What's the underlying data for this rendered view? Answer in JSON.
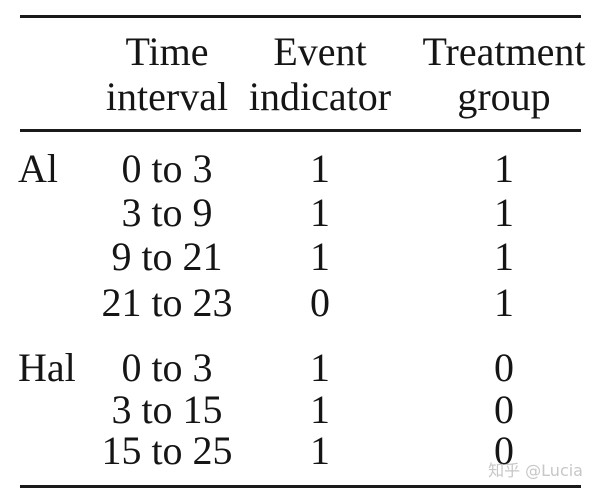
{
  "table": {
    "columns": [
      {
        "line1": "Time",
        "line2": "interval"
      },
      {
        "line1": "Event",
        "line2": "indicator"
      },
      {
        "line1": "Treatment",
        "line2": "group"
      }
    ],
    "groups": [
      {
        "subject": "Al",
        "rows": [
          {
            "interval": "0 to 3",
            "event": "1",
            "treatment": "1"
          },
          {
            "interval": "3 to 9",
            "event": "1",
            "treatment": "1"
          },
          {
            "interval": "9 to 21",
            "event": "1",
            "treatment": "1"
          },
          {
            "interval": "21 to 23",
            "event": "0",
            "treatment": "1"
          }
        ]
      },
      {
        "subject": "Hal",
        "rows": [
          {
            "interval": "0 to 3",
            "event": "1",
            "treatment": "0"
          },
          {
            "interval": "3 to 15",
            "event": "1",
            "treatment": "0"
          },
          {
            "interval": "15 to 25",
            "event": "1",
            "treatment": "0"
          }
        ]
      }
    ]
  },
  "watermark": {
    "text": "知乎 @Lucia",
    "color": "#c7c7c7"
  },
  "colors": {
    "background": "#ffffff",
    "text": "#151515",
    "rule": "#1a1a1a"
  }
}
